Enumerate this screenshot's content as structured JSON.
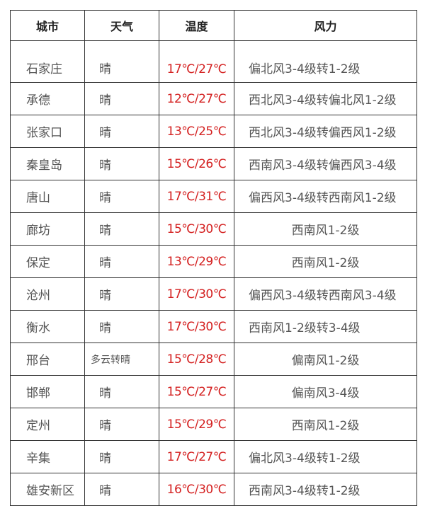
{
  "headers": [
    "城市",
    "天气",
    "温度",
    "风力"
  ],
  "rows": [
    {
      "city": "石家庄",
      "weather": "晴",
      "temp": "17℃/27℃",
      "wind": "偏北风3-4级转1-2级"
    },
    {
      "city": "承德",
      "weather": "晴",
      "temp": "12℃/27℃",
      "wind": "西北风3-4级转偏北风1-2级"
    },
    {
      "city": "张家口",
      "weather": "晴",
      "temp": "13℃/25℃",
      "wind": "西北风3-4级转偏西风1-2级"
    },
    {
      "city": "秦皇岛",
      "weather": "晴",
      "temp": "15℃/26℃",
      "wind": "西南风3-4级转偏西风3-4级"
    },
    {
      "city": "唐山",
      "weather": "晴",
      "temp": "17℃/31℃",
      "wind": "偏西风3-4级转西南风1-2级"
    },
    {
      "city": "廊坊",
      "weather": "晴",
      "temp": "15℃/30℃",
      "wind": "西南风1-2级"
    },
    {
      "city": "保定",
      "weather": "晴",
      "temp": "13℃/29℃",
      "wind": "西南风1-2级"
    },
    {
      "city": "沧州",
      "weather": "晴",
      "temp": "17℃/30℃",
      "wind": "偏西风3-4级转西南风3-4级"
    },
    {
      "city": "衡水",
      "weather": "晴",
      "temp": "17℃/30℃",
      "wind": "西南风1-2级转3-4级"
    },
    {
      "city": "邢台",
      "weather": "多云转晴",
      "temp": "15℃/28℃",
      "wind": "偏南风1-2级"
    },
    {
      "city": "邯郸",
      "weather": "晴",
      "temp": "15℃/27℃",
      "wind": "偏南风3-4级"
    },
    {
      "city": "定州",
      "weather": "晴",
      "temp": "15℃/29℃",
      "wind": "西南风1-2级"
    },
    {
      "city": "辛集",
      "weather": "晴",
      "temp": "17℃/27℃",
      "wind": "偏北风3-4级转1-2级"
    },
    {
      "city": "雄安新区",
      "weather": "晴",
      "temp": "16℃/30℃",
      "wind": "西南风3-4级转1-2级"
    }
  ],
  "colors": {
    "temperature": "#d42020",
    "text": "#555555"
  }
}
